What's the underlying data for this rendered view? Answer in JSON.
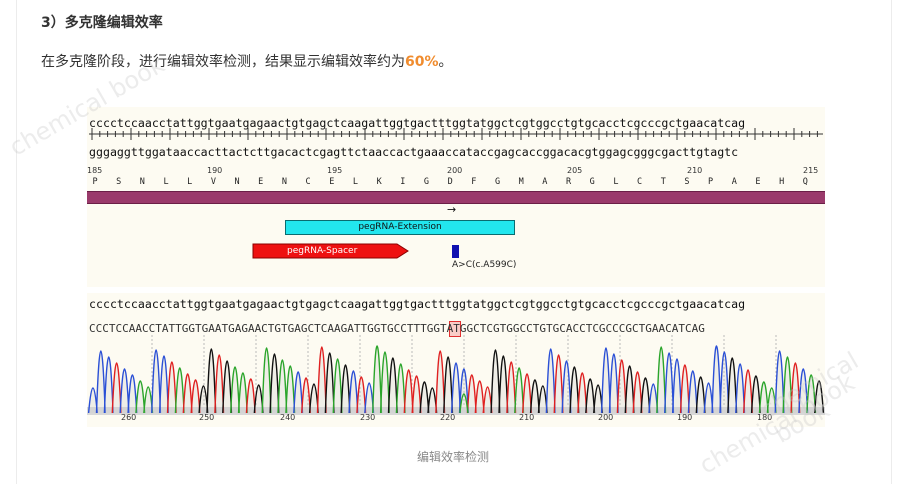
{
  "section": {
    "heading": "3）多克隆编辑效率",
    "paragraph_prefix": "在多克隆阶段，进行编辑效率检测，结果显示编辑效率约为",
    "paragraph_highlight": "60%",
    "paragraph_suffix": "。"
  },
  "figure": {
    "top_sequence": "cccctccaacctattggtgaatgagaactgtgagctcaagattggtgactttggtatggctcgtggcctgtgcacctcgcccgctgaacatcag",
    "complement_sequence": "gggaggttggataaccacttactcttgacactcgagttctaaccactgaaaccataccgagcaccggacacgtggagcgggcgacttgtagtc",
    "position_numbers": [
      "185",
      "190",
      "195",
      "200",
      "205",
      "210",
      "215"
    ],
    "amino_acids": [
      "P",
      "S",
      "N",
      "L",
      "L",
      "V",
      "N",
      "E",
      "N",
      "C",
      "E",
      "L",
      "K",
      "I",
      "G",
      "D",
      "F",
      "G",
      "M",
      "A",
      "R",
      "G",
      "L",
      "C",
      "T",
      "S",
      "P",
      "A",
      "E",
      "H",
      "Q"
    ],
    "features": {
      "extension_label": "pegRNA-Extension",
      "spacer_label": "pegRNA-Spacer",
      "mutation_label": "A>C(c.A599C)",
      "arrow": "→"
    },
    "ref_sequence": "cccctccaacctattggtgaatgagaactgtgagctcaagattggtgactttggtatggctcgtggcctgtgcacctcgcccgctgaacatcag",
    "read_sequence": "CCCTCCAACCTATTGGTGAATGAGAACTGTGAGCTCAAGATTGGTGCCTTTGGTATGGCTCGTGGCCTGTGCACCTCGCCCGCTGAACATCAG",
    "trace_numbers": [
      "260",
      "250",
      "240",
      "230",
      "220",
      "210",
      "200",
      "190",
      "180"
    ],
    "colors": {
      "A": "#2aa52a",
      "C": "#2a4fd6",
      "G": "#111111",
      "T": "#e02020",
      "bar": "#9a3a6b",
      "extension": "#22e6ee",
      "spacer": "#ee1111",
      "highlight": "#f08c2e"
    }
  },
  "caption": "编辑效率检测",
  "watermark": "chemical book"
}
